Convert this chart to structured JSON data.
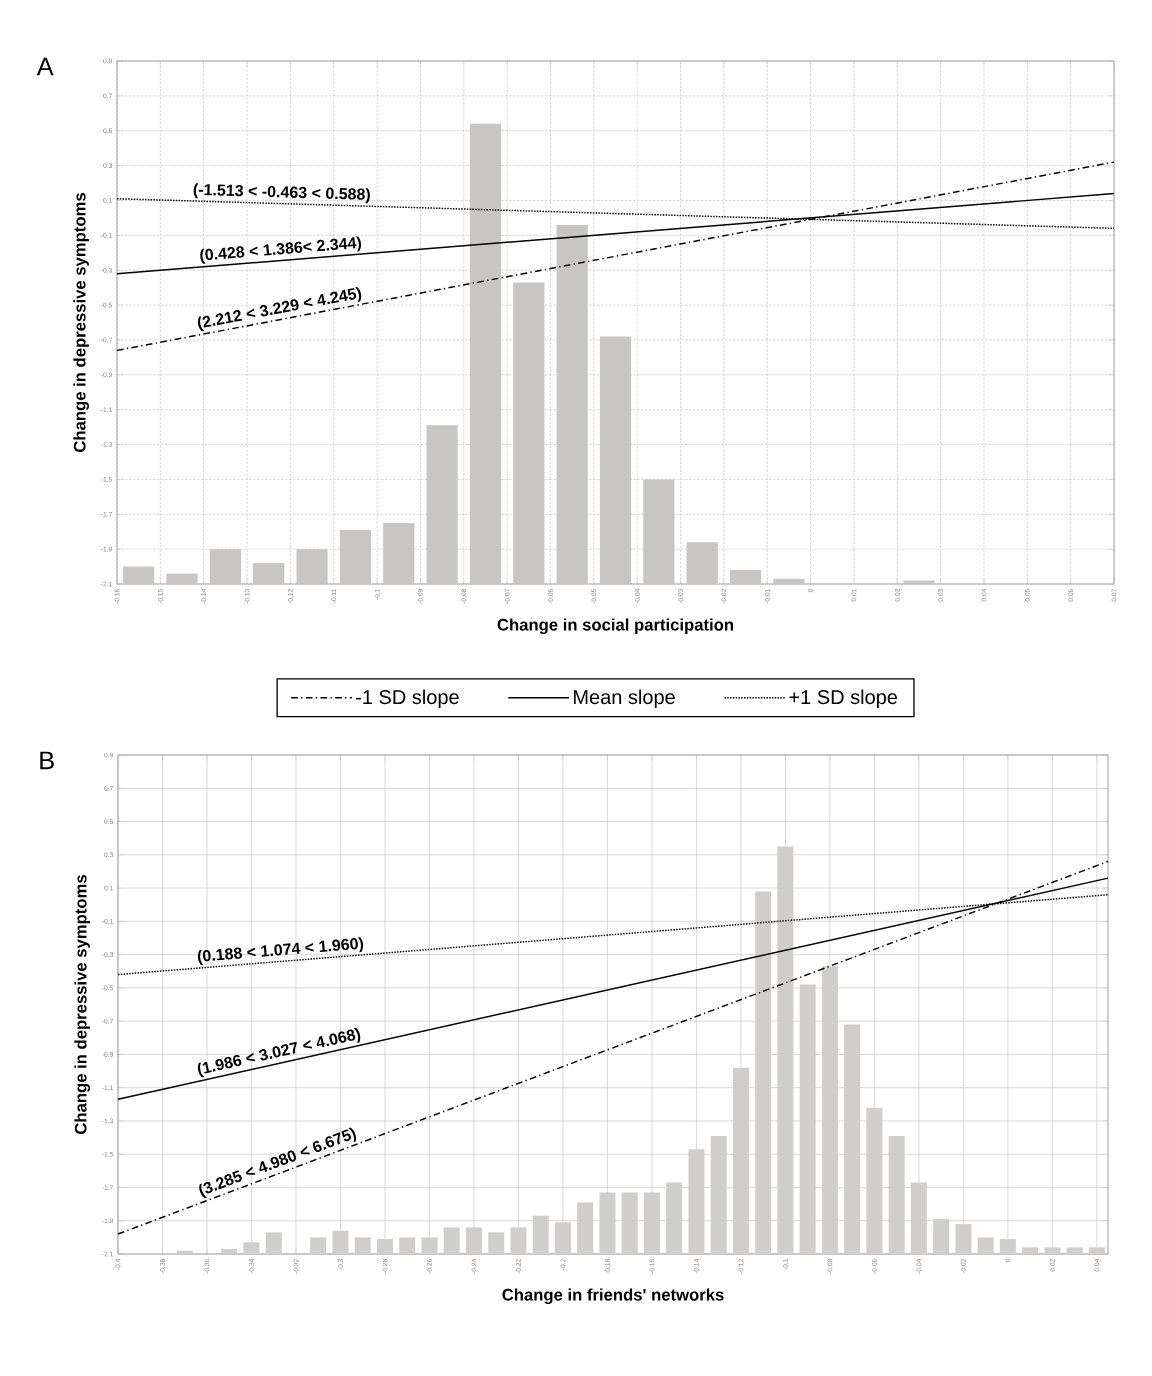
{
  "chart_data": [
    {
      "type": "bar",
      "title": "A",
      "xlabel": "Change in social participation",
      "ylabel": "Change in depressive symptoms",
      "xlim": [
        -0.16,
        0.07
      ],
      "ylim": [
        -2.1,
        0.9
      ],
      "xticks": [
        -0.16,
        -0.15,
        -0.14,
        -0.13,
        -0.12,
        -0.11,
        -0.1,
        -0.09,
        -0.08,
        -0.07,
        -0.06,
        -0.05,
        -0.04,
        -0.03,
        -0.02,
        -0.01,
        0,
        0.01,
        0.02,
        0.03,
        0.04,
        0.05,
        0.06,
        0.07
      ],
      "yticks": [
        0.9,
        0.7,
        0.5,
        0.3,
        0.1,
        -0.1,
        -0.3,
        -0.5,
        -0.7,
        -0.9,
        -1.1,
        -1.3,
        -1.5,
        -1.7,
        -1.9,
        -2.1
      ],
      "grid": true,
      "legend": "bottom",
      "series": [
        {
          "color": "#c8c5c5",
          "x": [
            -0.155,
            -0.145,
            -0.135,
            -0.125,
            -0.115,
            -0.105,
            -0.095,
            -0.085,
            -0.075,
            -0.065,
            -0.055,
            -0.045,
            -0.035,
            -0.025,
            -0.015,
            -0.005,
            0.025
          ],
          "base": [
            -2.1,
            -2.1,
            -2.1,
            -2.1,
            -2.1,
            -2.1,
            -2.1,
            -2.1,
            -2.1,
            -2.1,
            -2.1,
            -2.1,
            -2.1,
            -2.1,
            -2.1,
            -2.1,
            -2.1
          ],
          "values": [
            0.1,
            0.06,
            0.2,
            0.12,
            0.2,
            0.31,
            0.35,
            0.91,
            2.64,
            1.73,
            2.06,
            1.42,
            0.6,
            0.24,
            0.08,
            0.03,
            0.02
          ]
        },
        {
          "type": "line",
          "name": "-1 SD slope",
          "color": "#000000",
          "line_style": "dashed",
          "x": [
            -0.16,
            0.07
          ],
          "values": [
            -0.76,
            0.32
          ]
        },
        {
          "type": "line",
          "name": "Mean slope",
          "color": "#000000",
          "line_style": "solid",
          "x": [
            -0.16,
            0.07
          ],
          "values": [
            -0.32,
            0.14
          ]
        },
        {
          "type": "line",
          "name": "+1 SD slope",
          "color": "#000000",
          "line_style": "dotted",
          "x": [
            -0.16,
            0.07
          ],
          "values": [
            0.11,
            -0.06
          ]
        }
      ],
      "annotations": [
        "(-1.513 < -0.463 < 0.588)",
        "(0.428 < 1.386< 2.344)",
        "(2.212 < 3.229 < 4.245)"
      ]
    },
    {
      "type": "bar",
      "title": "B",
      "xlabel": "Change in friends' networks",
      "ylabel": "Change in depressive symptoms",
      "xlim": [
        -0.4,
        0.045
      ],
      "ylim": [
        -2.1,
        0.9
      ],
      "xticks": [
        -0.4,
        -0.38,
        -0.36,
        -0.34,
        -0.32,
        -0.3,
        -0.28,
        -0.26,
        -0.24,
        -0.22,
        -0.2,
        -0.18,
        -0.16,
        -0.14,
        -0.12,
        -0.1,
        -0.08,
        -0.06,
        -0.04,
        -0.02,
        0,
        0.02,
        0.04
      ],
      "yticks": [
        0.9,
        0.7,
        0.5,
        0.3,
        0.1,
        -0.1,
        -0.3,
        -0.5,
        -0.7,
        -0.9,
        -1.1,
        -1.3,
        -1.5,
        -1.7,
        -1.9,
        -2.1
      ],
      "grid": true,
      "series": [
        {
          "color": "#d0cdcd",
          "x": [
            -0.37,
            -0.35,
            -0.34,
            -0.33,
            -0.31,
            -0.3,
            -0.29,
            -0.28,
            -0.27,
            -0.26,
            -0.25,
            -0.24,
            -0.23,
            -0.22,
            -0.21,
            -0.2,
            -0.19,
            -0.18,
            -0.17,
            -0.16,
            -0.15,
            -0.14,
            -0.13,
            -0.12,
            -0.11,
            -0.1,
            -0.09,
            -0.08,
            -0.07,
            -0.06,
            -0.05,
            -0.04,
            -0.03,
            -0.02,
            -0.01,
            0,
            0.01,
            0.02,
            0.03,
            0.04
          ],
          "base": [
            -2.1,
            -2.1,
            -2.1,
            -2.1,
            -2.1,
            -2.1,
            -2.1,
            -2.1,
            -2.1,
            -2.1,
            -2.1,
            -2.1,
            -2.1,
            -2.1,
            -2.1,
            -2.1,
            -2.1,
            -2.1,
            -2.1,
            -2.1,
            -2.1,
            -2.1,
            -2.1,
            -2.1,
            -2.1,
            -2.1,
            -2.1,
            -2.1,
            -2.1,
            -2.1,
            -2.1,
            -2.1,
            -2.1,
            -2.1,
            -2.1,
            -2.1,
            -2.1,
            -2.1,
            -2.1,
            -2.1
          ],
          "values": [
            0.02,
            0.03,
            0.07,
            0.13,
            0.1,
            0.14,
            0.1,
            0.09,
            0.1,
            0.1,
            0.16,
            0.16,
            0.13,
            0.16,
            0.23,
            0.19,
            0.31,
            0.37,
            0.37,
            0.37,
            0.43,
            0.63,
            0.71,
            1.12,
            2.18,
            2.45,
            1.62,
            1.73,
            1.38,
            0.88,
            0.71,
            0.43,
            0.21,
            0.18,
            0.1,
            0.09,
            0.04,
            0.04,
            0.04,
            0.04
          ]
        },
        {
          "type": "line",
          "color": "#000000",
          "line_style": "dashed",
          "x": [
            -0.4,
            0.045
          ],
          "values": [
            -1.98,
            0.26
          ]
        },
        {
          "type": "line",
          "color": "#000000",
          "line_style": "solid",
          "x": [
            -0.4,
            0.045
          ],
          "values": [
            -1.17,
            0.16
          ]
        },
        {
          "type": "line",
          "color": "#000000",
          "line_style": "dotted",
          "x": [
            -0.4,
            0.045
          ],
          "values": [
            -0.42,
            0.06
          ]
        }
      ],
      "annotations": [
        "(0.188 < 1.074 < 1.960)",
        "(1.986 < 3.027 < 4.068)",
        "(3.285 < 4.980 < 6.675)"
      ]
    }
  ]
}
